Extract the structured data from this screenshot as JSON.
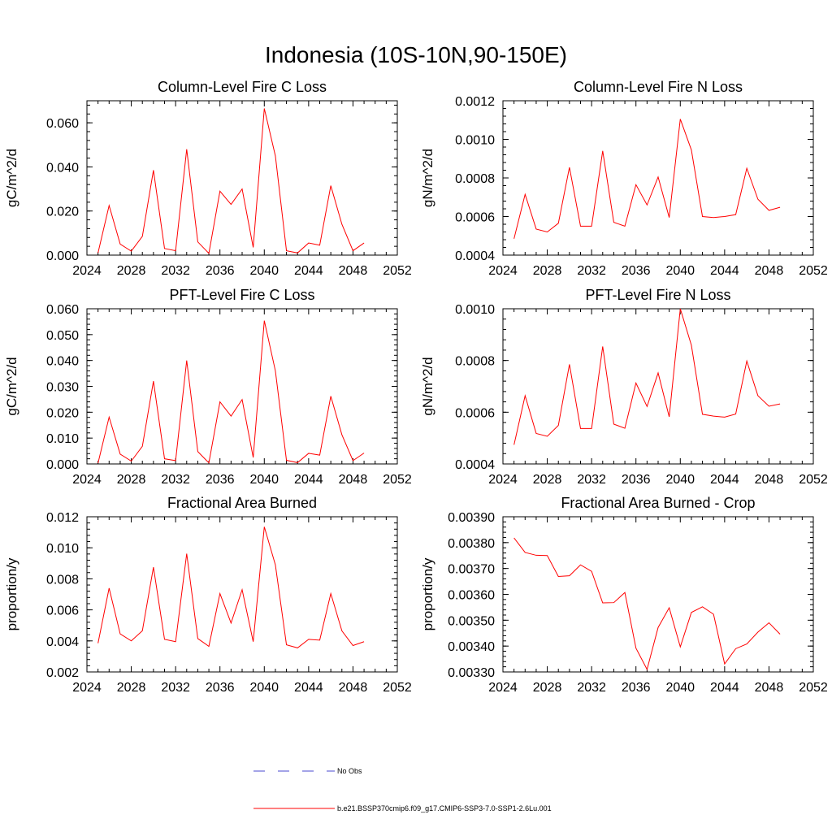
{
  "figure_title": "Indonesia (10S-10N,90-150E)",
  "colors": {
    "series": "#ff0000",
    "obs": "#4a4ad0",
    "axis": "#000000"
  },
  "legend": {
    "obs_label": "No Obs",
    "model_label": "b.e21.BSSP370cmip6.f09_g17.CMIP6-SSP3-7.0-SSP1-2.6Lu.001"
  },
  "chart_data": [
    {
      "type": "line",
      "title": "Column-Level Fire C Loss",
      "xlabel": "",
      "ylabel": "gC/m^2/d",
      "xlim": [
        2024,
        2052
      ],
      "ylim": [
        0,
        0.07
      ],
      "xticks": [
        "2024",
        "2028",
        "2032",
        "2036",
        "2040",
        "2044",
        "2048",
        "2052"
      ],
      "yticks": [
        "0.000",
        "0.020",
        "0.040",
        "0.060"
      ],
      "x": [
        2025,
        2026,
        2027,
        2028,
        2029,
        2030,
        2031,
        2032,
        2033,
        2034,
        2035,
        2036,
        2037,
        2038,
        2039,
        2040,
        2041,
        2042,
        2043,
        2044,
        2045,
        2046,
        2047,
        2048,
        2049
      ],
      "series": [
        {
          "values": [
            0.001,
            0.0225,
            0.005,
            0.0018,
            0.0085,
            0.0385,
            0.003,
            0.002,
            0.048,
            0.006,
            0.0008,
            0.029,
            0.023,
            0.03,
            0.0035,
            0.0665,
            0.045,
            0.002,
            0.001,
            0.0055,
            0.0045,
            0.0315,
            0.014,
            0.002,
            0.0055
          ]
        }
      ]
    },
    {
      "type": "line",
      "title": "Column-Level Fire N Loss",
      "xlabel": "",
      "ylabel": "gN/m^2/d",
      "xlim": [
        2024,
        2052
      ],
      "ylim": [
        0.0004,
        0.0012
      ],
      "xticks": [
        "2024",
        "2028",
        "2032",
        "2036",
        "2040",
        "2044",
        "2048",
        "2052"
      ],
      "yticks": [
        "0.0004",
        "0.0006",
        "0.0008",
        "0.0010",
        "0.0012"
      ],
      "x": [
        2025,
        2026,
        2027,
        2028,
        2029,
        2030,
        2031,
        2032,
        2033,
        2034,
        2035,
        2036,
        2037,
        2038,
        2039,
        2040,
        2041,
        2042,
        2043,
        2044,
        2045,
        2046,
        2047,
        2048,
        2049
      ],
      "series": [
        {
          "values": [
            0.000485,
            0.000715,
            0.000535,
            0.00052,
            0.000565,
            0.000855,
            0.00055,
            0.00055,
            0.00094,
            0.00057,
            0.00055,
            0.000765,
            0.00066,
            0.000805,
            0.000595,
            0.001105,
            0.000945,
            0.0006,
            0.000595,
            0.0006,
            0.00061,
            0.00085,
            0.00069,
            0.000632,
            0.000648
          ]
        }
      ]
    },
    {
      "type": "line",
      "title": "PFT-Level Fire C Loss",
      "xlabel": "",
      "ylabel": "gC/m^2/d",
      "xlim": [
        2024,
        2052
      ],
      "ylim": [
        0,
        0.06
      ],
      "xticks": [
        "2024",
        "2028",
        "2032",
        "2036",
        "2040",
        "2044",
        "2048",
        "2052"
      ],
      "yticks": [
        "0.000",
        "0.010",
        "0.020",
        "0.030",
        "0.040",
        "0.050",
        "0.060"
      ],
      "x": [
        2025,
        2026,
        2027,
        2028,
        2029,
        2030,
        2031,
        2032,
        2033,
        2034,
        2035,
        2036,
        2037,
        2038,
        2039,
        2040,
        2041,
        2042,
        2043,
        2044,
        2045,
        2046,
        2047,
        2048,
        2049
      ],
      "series": [
        {
          "values": [
            0.0003,
            0.0181,
            0.0038,
            0.0011,
            0.0068,
            0.032,
            0.002,
            0.0013,
            0.04,
            0.0048,
            0.0004,
            0.024,
            0.0185,
            0.0249,
            0.0025,
            0.0554,
            0.036,
            0.0014,
            0.0005,
            0.0041,
            0.0034,
            0.0262,
            0.0113,
            0.0013,
            0.0042
          ]
        }
      ]
    },
    {
      "type": "line",
      "title": "PFT-Level Fire N Loss",
      "xlabel": "",
      "ylabel": "gN/m^2/d",
      "xlim": [
        2024,
        2052
      ],
      "ylim": [
        0.0004,
        0.001
      ],
      "xticks": [
        "2024",
        "2028",
        "2032",
        "2036",
        "2040",
        "2044",
        "2048",
        "2052"
      ],
      "yticks": [
        "0.0004",
        "0.0006",
        "0.0008",
        "0.0010"
      ],
      "x": [
        2025,
        2026,
        2027,
        2028,
        2029,
        2030,
        2031,
        2032,
        2033,
        2034,
        2035,
        2036,
        2037,
        2038,
        2039,
        2040,
        2041,
        2042,
        2043,
        2044,
        2045,
        2046,
        2047,
        2048,
        2049
      ],
      "series": [
        {
          "values": [
            0.000474,
            0.000664,
            0.000518,
            0.000507,
            0.000549,
            0.000785,
            0.000537,
            0.000537,
            0.000854,
            0.000554,
            0.000538,
            0.000713,
            0.000622,
            0.000752,
            0.000582,
            0.001,
            0.000859,
            0.000592,
            0.000585,
            0.000581,
            0.000593,
            0.000798,
            0.000664,
            0.000623,
            0.000632
          ]
        }
      ]
    },
    {
      "type": "line",
      "title": "Fractional Area Burned",
      "xlabel": "",
      "ylabel": "proportion/y",
      "xlim": [
        2024,
        2052
      ],
      "ylim": [
        0.002,
        0.012
      ],
      "xticks": [
        "2024",
        "2028",
        "2032",
        "2036",
        "2040",
        "2044",
        "2048",
        "2052"
      ],
      "yticks": [
        "0.002",
        "0.004",
        "0.006",
        "0.008",
        "0.010",
        "0.012"
      ],
      "x": [
        2025,
        2026,
        2027,
        2028,
        2029,
        2030,
        2031,
        2032,
        2033,
        2034,
        2035,
        2036,
        2037,
        2038,
        2039,
        2040,
        2041,
        2042,
        2043,
        2044,
        2045,
        2046,
        2047,
        2048,
        2049
      ],
      "series": [
        {
          "values": [
            0.00385,
            0.0074,
            0.00445,
            0.004,
            0.00465,
            0.00875,
            0.0041,
            0.00395,
            0.00962,
            0.00415,
            0.00365,
            0.00705,
            0.00515,
            0.0073,
            0.00395,
            0.01135,
            0.0089,
            0.00375,
            0.00355,
            0.0041,
            0.00405,
            0.00705,
            0.00465,
            0.0037,
            0.00395
          ]
        }
      ]
    },
    {
      "type": "line",
      "title": "Fractional Area Burned - Crop",
      "xlabel": "",
      "ylabel": "proportion/y",
      "xlim": [
        2024,
        2052
      ],
      "ylim": [
        0.0033,
        0.0039
      ],
      "xticks": [
        "2024",
        "2028",
        "2032",
        "2036",
        "2040",
        "2044",
        "2048",
        "2052"
      ],
      "yticks": [
        "0.00330",
        "0.00340",
        "0.00350",
        "0.00360",
        "0.00370",
        "0.00380",
        "0.00390"
      ],
      "x": [
        2025,
        2026,
        2027,
        2028,
        2029,
        2030,
        2031,
        2032,
        2033,
        2034,
        2035,
        2036,
        2037,
        2038,
        2039,
        2040,
        2041,
        2042,
        2043,
        2044,
        2045,
        2046,
        2047,
        2048,
        2049
      ],
      "series": [
        {
          "values": [
            0.003818,
            0.003762,
            0.003751,
            0.00375,
            0.003669,
            0.003672,
            0.003714,
            0.003689,
            0.003567,
            0.003568,
            0.003607,
            0.003392,
            0.00331,
            0.003472,
            0.003548,
            0.003397,
            0.00353,
            0.003552,
            0.003523,
            0.003331,
            0.00339,
            0.003408,
            0.003454,
            0.00349,
            0.003446
          ]
        }
      ]
    }
  ]
}
